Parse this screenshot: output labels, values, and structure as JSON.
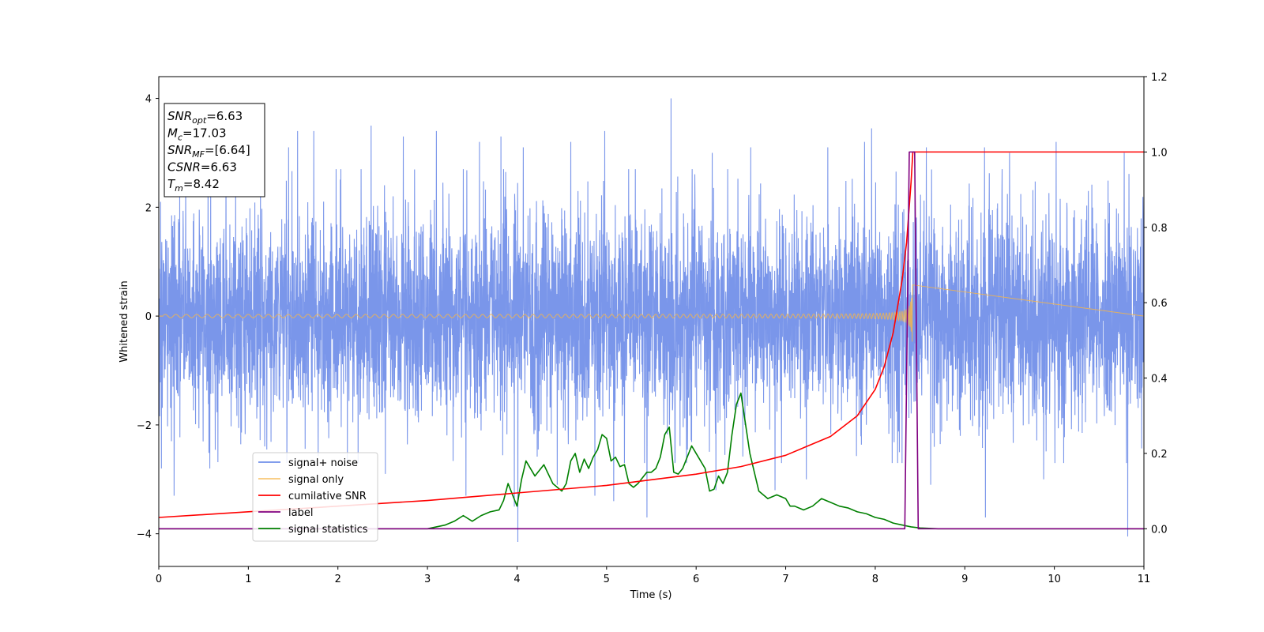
{
  "chart_data": {
    "type": "line",
    "xlabel": "Time (s)",
    "ylabel": "Whitened strain",
    "xlim": [
      0,
      11
    ],
    "ylim_left": [
      -4.6,
      4.4
    ],
    "ylim_right": [
      -0.1,
      1.2
    ],
    "x_ticks": [
      "0",
      "1",
      "2",
      "3",
      "4",
      "5",
      "6",
      "7",
      "8",
      "9",
      "10",
      "11"
    ],
    "y_ticks_left": [
      "−4",
      "−2",
      "0",
      "2",
      "4"
    ],
    "y_ticks_right": [
      "0.0",
      "0.2",
      "0.4",
      "0.6",
      "0.8",
      "1.0",
      "1.2"
    ],
    "grid": false,
    "legend_position": "lower-left",
    "stats": [
      {
        "name": "SNR",
        "sub": "opt",
        "value": "=6.63"
      },
      {
        "name": "M",
        "sub": "c",
        "value": "=17.03"
      },
      {
        "name": "SNR",
        "sub": "MF",
        "value": "=[6.64]"
      },
      {
        "name": "CSNR",
        "sub": "",
        "value": "=6.63"
      },
      {
        "name": "T",
        "sub": "m",
        "value": "=8.42"
      }
    ],
    "series": [
      {
        "name": "signal+ noise",
        "axis": "left",
        "color": "#4169e1",
        "opacity": 0.7,
        "style": "noise",
        "noise_std": 0.95,
        "peaks_top": [
          [
            0.02,
            2.1
          ],
          [
            0.3,
            2.6
          ],
          [
            0.75,
            2.9
          ],
          [
            1.45,
            3.1
          ],
          [
            1.55,
            3.4
          ],
          [
            1.73,
            3.4
          ],
          [
            2.37,
            3.5
          ],
          [
            2.73,
            3.3
          ],
          [
            3.1,
            3.4
          ],
          [
            3.4,
            2.7
          ],
          [
            3.58,
            3.2
          ],
          [
            3.82,
            3.3
          ],
          [
            4.07,
            3.1
          ],
          [
            4.6,
            3.2
          ],
          [
            4.98,
            3.4
          ],
          [
            5.45,
            3.1
          ],
          [
            5.72,
            4.0
          ],
          [
            6.18,
            3.0
          ],
          [
            6.61,
            3.1
          ],
          [
            7.47,
            3.1
          ],
          [
            7.88,
            3.2
          ],
          [
            7.96,
            3.45
          ],
          [
            8.57,
            3.1
          ],
          [
            9.22,
            3.1
          ],
          [
            9.5,
            3.0
          ],
          [
            10.02,
            3.2
          ],
          [
            10.78,
            3.0
          ]
        ],
        "peaks_bottom": [
          [
            0.03,
            -2.8
          ],
          [
            0.17,
            -3.3
          ],
          [
            0.57,
            -2.8
          ],
          [
            1.43,
            -2.7
          ],
          [
            2.53,
            -2.9
          ],
          [
            3.43,
            -3.3
          ],
          [
            3.97,
            -3.5
          ],
          [
            4.01,
            -4.15
          ],
          [
            4.45,
            -3.1
          ],
          [
            4.87,
            -3.3
          ],
          [
            5.08,
            -3.4
          ],
          [
            5.45,
            -3.7
          ],
          [
            6.22,
            -3.2
          ],
          [
            6.88,
            -3.2
          ],
          [
            7.23,
            -3.0
          ],
          [
            8.3,
            -2.7
          ],
          [
            8.62,
            -3.1
          ],
          [
            9.23,
            -3.7
          ],
          [
            9.88,
            -3.0
          ],
          [
            10.82,
            -4.05
          ]
        ]
      },
      {
        "name": "signal only",
        "axis": "left",
        "color": "#f5b54a",
        "style": "chirp",
        "t_merge": 8.42,
        "peak_amplitude": 0.6,
        "base_amplitude": 0.03
      },
      {
        "name": "cumilative SNR",
        "axis": "right",
        "color": "#ff0000",
        "style": "line",
        "x": [
          0,
          1,
          2,
          3,
          4,
          5,
          6,
          6.5,
          7,
          7.5,
          7.8,
          8,
          8.1,
          8.2,
          8.3,
          8.35,
          8.4,
          8.42,
          11
        ],
        "values": [
          0.03,
          0.045,
          0.06,
          0.075,
          0.095,
          0.115,
          0.145,
          0.165,
          0.195,
          0.245,
          0.3,
          0.37,
          0.43,
          0.52,
          0.66,
          0.76,
          0.92,
          1.0,
          1.0
        ]
      },
      {
        "name": "label",
        "axis": "right",
        "color": "#800080",
        "style": "line",
        "x": [
          0,
          8.33,
          8.38,
          8.44,
          8.48,
          11
        ],
        "values": [
          0.0,
          0.0,
          1.0,
          1.0,
          0.0,
          0.0
        ]
      },
      {
        "name": "signal statistics",
        "axis": "right",
        "color": "#008000",
        "style": "line",
        "x": [
          0,
          0.5,
          1,
          1.5,
          2,
          2.5,
          3,
          3.1,
          3.2,
          3.3,
          3.4,
          3.5,
          3.6,
          3.7,
          3.8,
          3.85,
          3.9,
          4.0,
          4.05,
          4.1,
          4.2,
          4.3,
          4.4,
          4.5,
          4.55,
          4.6,
          4.65,
          4.7,
          4.75,
          4.8,
          4.85,
          4.9,
          4.95,
          5.0,
          5.05,
          5.1,
          5.15,
          5.2,
          5.25,
          5.3,
          5.35,
          5.4,
          5.45,
          5.5,
          5.55,
          5.6,
          5.65,
          5.7,
          5.75,
          5.8,
          5.85,
          5.9,
          5.95,
          6.0,
          6.05,
          6.1,
          6.15,
          6.2,
          6.25,
          6.3,
          6.35,
          6.4,
          6.45,
          6.5,
          6.55,
          6.6,
          6.65,
          6.7,
          6.75,
          6.8,
          6.85,
          6.9,
          7.0,
          7.05,
          7.1,
          7.15,
          7.2,
          7.3,
          7.4,
          7.45,
          7.5,
          7.6,
          7.7,
          7.8,
          7.9,
          8.0,
          8.1,
          8.2,
          8.3,
          8.4,
          8.5,
          8.7,
          9,
          10,
          11
        ],
        "values": [
          0.0,
          0.0,
          0.0,
          0.0,
          0.0,
          0.0,
          0.0,
          0.005,
          0.01,
          0.02,
          0.035,
          0.02,
          0.035,
          0.045,
          0.05,
          0.075,
          0.12,
          0.06,
          0.13,
          0.18,
          0.14,
          0.17,
          0.12,
          0.1,
          0.12,
          0.18,
          0.2,
          0.15,
          0.185,
          0.16,
          0.19,
          0.21,
          0.25,
          0.24,
          0.18,
          0.19,
          0.165,
          0.17,
          0.12,
          0.11,
          0.12,
          0.135,
          0.15,
          0.15,
          0.16,
          0.19,
          0.25,
          0.27,
          0.15,
          0.145,
          0.16,
          0.19,
          0.22,
          0.2,
          0.18,
          0.16,
          0.1,
          0.105,
          0.14,
          0.12,
          0.15,
          0.25,
          0.33,
          0.36,
          0.28,
          0.2,
          0.15,
          0.1,
          0.09,
          0.08,
          0.085,
          0.09,
          0.08,
          0.06,
          0.06,
          0.055,
          0.05,
          0.06,
          0.08,
          0.075,
          0.07,
          0.06,
          0.055,
          0.045,
          0.04,
          0.03,
          0.025,
          0.015,
          0.01,
          0.005,
          0.002,
          0.0,
          0.0,
          0.0,
          0.0
        ]
      }
    ]
  }
}
